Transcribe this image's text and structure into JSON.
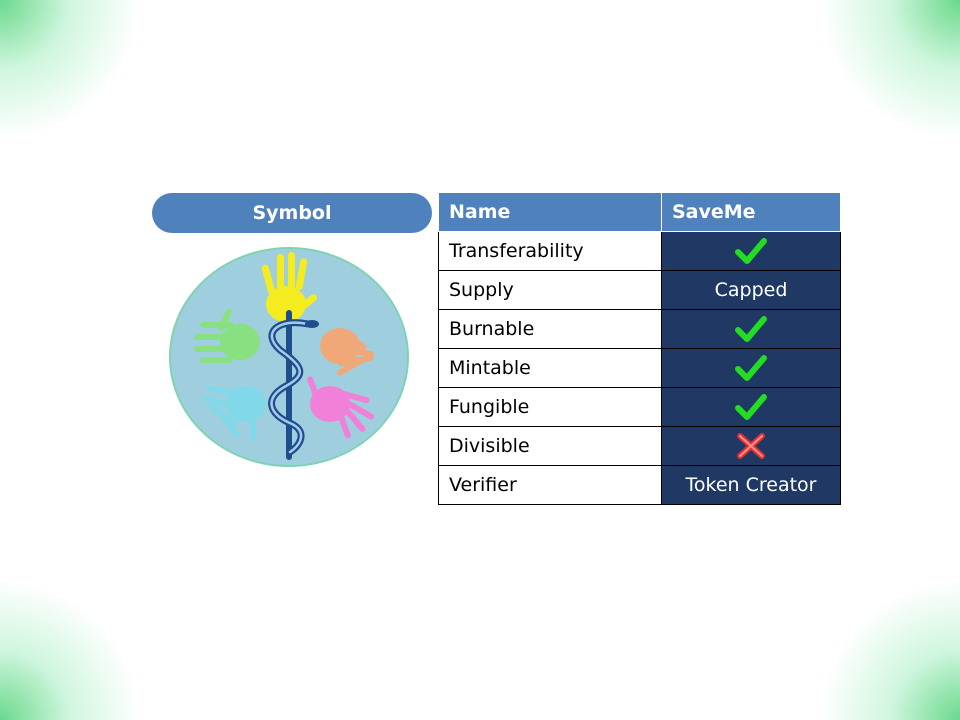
{
  "symbol_label": "Symbol",
  "table": {
    "headers": [
      "Name",
      "SaveMe"
    ],
    "rows": [
      {
        "property": "Transferability",
        "value": "",
        "icon": "check-icon"
      },
      {
        "property": "Supply",
        "value": "Capped",
        "icon": ""
      },
      {
        "property": "Burnable",
        "value": "",
        "icon": "check-icon"
      },
      {
        "property": "Mintable",
        "value": "",
        "icon": "check-icon"
      },
      {
        "property": "Fungible",
        "value": "",
        "icon": "check-icon"
      },
      {
        "property": "Divisible",
        "value": "",
        "icon": "cross-icon"
      },
      {
        "property": "Verifier",
        "value": "Token Creator",
        "icon": ""
      }
    ]
  },
  "colors": {
    "header_bg": "#4f81bd",
    "value_cell_bg": "#1f3864",
    "check": "#22dd22",
    "cross": "#e03030",
    "logo_circle": "#9fcfdf"
  }
}
